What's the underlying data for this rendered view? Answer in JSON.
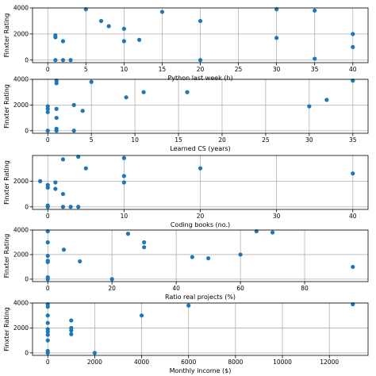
{
  "chart_data": [
    {
      "type": "scatter",
      "xlabel": "Python last week (h)",
      "ylabel": "Finxter Rating",
      "xlim": [
        -2,
        42
      ],
      "ylim": [
        -200,
        4000
      ],
      "xticks": [
        "0",
        "5",
        "10",
        "15",
        "20",
        "25",
        "30",
        "35",
        "40"
      ],
      "yticks": [
        "0",
        "2000",
        "4000"
      ],
      "grid": true,
      "points": [
        {
          "x": 1,
          "y": 1900
        },
        {
          "x": 1,
          "y": 1750
        },
        {
          "x": 1,
          "y": 0
        },
        {
          "x": 2,
          "y": 1450
        },
        {
          "x": 2,
          "y": 0
        },
        {
          "x": 3,
          "y": 0
        },
        {
          "x": 5,
          "y": 3900
        },
        {
          "x": 7,
          "y": 3000
        },
        {
          "x": 8,
          "y": 2600
        },
        {
          "x": 10,
          "y": 2400
        },
        {
          "x": 10,
          "y": 1450
        },
        {
          "x": 12,
          "y": 1550
        },
        {
          "x": 15,
          "y": 3700
        },
        {
          "x": 20,
          "y": 3000
        },
        {
          "x": 20,
          "y": 0
        },
        {
          "x": 30,
          "y": 3900
        },
        {
          "x": 30,
          "y": 1700
        },
        {
          "x": 35,
          "y": 3800
        },
        {
          "x": 35,
          "y": 100
        },
        {
          "x": 40,
          "y": 2000
        },
        {
          "x": 40,
          "y": 1000
        }
      ]
    },
    {
      "type": "scatter",
      "xlabel": "Learned CS (years)",
      "ylabel": "Finxter Rating",
      "xlim": [
        -1.75,
        36.75
      ],
      "ylim": [
        -200,
        4000
      ],
      "xticks": [
        "0",
        "5",
        "10",
        "15",
        "20",
        "25",
        "30",
        "35"
      ],
      "yticks": [
        "0",
        "2000",
        "4000"
      ],
      "grid": true,
      "points": [
        {
          "x": 0,
          "y": 1900
        },
        {
          "x": 0,
          "y": 1700
        },
        {
          "x": 0,
          "y": 1450
        },
        {
          "x": 0,
          "y": 0
        },
        {
          "x": 1,
          "y": 3900
        },
        {
          "x": 1,
          "y": 3700
        },
        {
          "x": 1,
          "y": 1700
        },
        {
          "x": 1,
          "y": 1000
        },
        {
          "x": 1,
          "y": 150
        },
        {
          "x": 1,
          "y": 0
        },
        {
          "x": 3,
          "y": 2000
        },
        {
          "x": 3,
          "y": 0
        },
        {
          "x": 4,
          "y": 1550
        },
        {
          "x": 5,
          "y": 3800
        },
        {
          "x": 9,
          "y": 2600
        },
        {
          "x": 11,
          "y": 3000
        },
        {
          "x": 16,
          "y": 3000
        },
        {
          "x": 30,
          "y": 1900
        },
        {
          "x": 32,
          "y": 2400
        },
        {
          "x": 35,
          "y": 3900
        }
      ]
    },
    {
      "type": "scatter",
      "xlabel": "Coding books (no.)",
      "ylabel": "Finxter Rating",
      "xlim": [
        -2,
        42
      ],
      "ylim": [
        -200,
        4000
      ],
      "xticks": [
        "0",
        "10",
        "20",
        "30",
        "40"
      ],
      "yticks": [
        "0",
        "2000"
      ],
      "grid": true,
      "points": [
        {
          "x": -1,
          "y": 2000
        },
        {
          "x": 0,
          "y": 1700
        },
        {
          "x": 0,
          "y": 1500
        },
        {
          "x": 0,
          "y": 100
        },
        {
          "x": 0,
          "y": 0
        },
        {
          "x": 1,
          "y": 1900
        },
        {
          "x": 1,
          "y": 1400
        },
        {
          "x": 2,
          "y": 3700
        },
        {
          "x": 2,
          "y": 1000
        },
        {
          "x": 2,
          "y": 0
        },
        {
          "x": 3,
          "y": 0
        },
        {
          "x": 4,
          "y": 3900
        },
        {
          "x": 4,
          "y": 0
        },
        {
          "x": 5,
          "y": 3000
        },
        {
          "x": 10,
          "y": 3800
        },
        {
          "x": 10,
          "y": 2400
        },
        {
          "x": 10,
          "y": 1900
        },
        {
          "x": 20,
          "y": 3000
        },
        {
          "x": 40,
          "y": 2600
        }
      ]
    },
    {
      "type": "scatter",
      "xlabel": "Ratio real projects (%)",
      "ylabel": "Finxter Rating",
      "xlim": [
        -4.75,
        99.75
      ],
      "ylim": [
        -200,
        4000
      ],
      "xticks": [
        "0",
        "20",
        "40",
        "60",
        "80"
      ],
      "yticks": [
        "0",
        "2000",
        "4000"
      ],
      "grid": true,
      "points": [
        {
          "x": 0,
          "y": 3900
        },
        {
          "x": 0,
          "y": 3000
        },
        {
          "x": 0,
          "y": 1900
        },
        {
          "x": 0,
          "y": 1500
        },
        {
          "x": 0,
          "y": 1400
        },
        {
          "x": 0,
          "y": 150
        },
        {
          "x": 0,
          "y": 0
        },
        {
          "x": 5,
          "y": 2400
        },
        {
          "x": 10,
          "y": 1450
        },
        {
          "x": 20,
          "y": 0
        },
        {
          "x": 25,
          "y": 3700
        },
        {
          "x": 30,
          "y": 3000
        },
        {
          "x": 30,
          "y": 2600
        },
        {
          "x": 45,
          "y": 1800
        },
        {
          "x": 50,
          "y": 1700
        },
        {
          "x": 60,
          "y": 2000
        },
        {
          "x": 65,
          "y": 3900
        },
        {
          "x": 70,
          "y": 3800
        },
        {
          "x": 95,
          "y": 1000
        }
      ]
    },
    {
      "type": "scatter",
      "xlabel": "Monthly income ($)",
      "ylabel": "Finxter Rating",
      "xlim": [
        -650,
        13650
      ],
      "ylim": [
        -200,
        4000
      ],
      "xticks": [
        "0",
        "2000",
        "4000",
        "6000",
        "8000",
        "10000",
        "12000"
      ],
      "yticks": [
        "0",
        "2000",
        "4000"
      ],
      "grid": true,
      "points": [
        {
          "x": 0,
          "y": 3900
        },
        {
          "x": 0,
          "y": 3700
        },
        {
          "x": 0,
          "y": 3000
        },
        {
          "x": 0,
          "y": 2400
        },
        {
          "x": 0,
          "y": 1900
        },
        {
          "x": 0,
          "y": 1700
        },
        {
          "x": 0,
          "y": 1450
        },
        {
          "x": 0,
          "y": 1000
        },
        {
          "x": 0,
          "y": 150
        },
        {
          "x": 0,
          "y": 0
        },
        {
          "x": 1000,
          "y": 2600
        },
        {
          "x": 1000,
          "y": 2000
        },
        {
          "x": 1000,
          "y": 1800
        },
        {
          "x": 1000,
          "y": 1500
        },
        {
          "x": 2000,
          "y": 0
        },
        {
          "x": 4000,
          "y": 3000
        },
        {
          "x": 6000,
          "y": 3800
        },
        {
          "x": 13000,
          "y": 3900
        }
      ]
    }
  ],
  "colors": {
    "points": "#1f77b4",
    "grid": "#b0b0b0",
    "axes": "#000000"
  }
}
